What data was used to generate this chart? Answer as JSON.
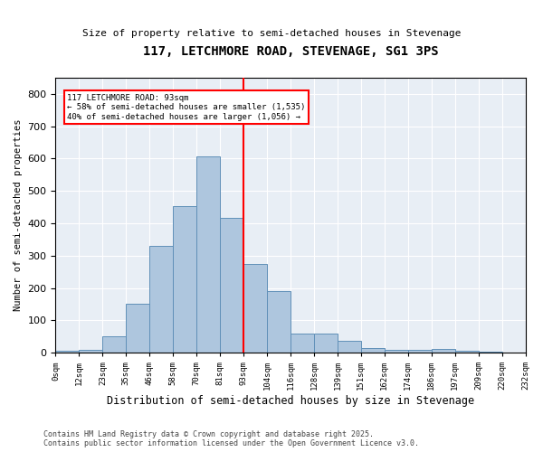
{
  "title": "117, LETCHMORE ROAD, STEVENAGE, SG1 3PS",
  "subtitle": "Size of property relative to semi-detached houses in Stevenage",
  "xlabel": "Distribution of semi-detached houses by size in Stevenage",
  "ylabel": "Number of semi-detached properties",
  "categories": [
    "0sqm",
    "12sqm",
    "23sqm",
    "35sqm",
    "46sqm",
    "58sqm",
    "70sqm",
    "81sqm",
    "93sqm",
    "104sqm",
    "116sqm",
    "128sqm",
    "139sqm",
    "151sqm",
    "162sqm",
    "174sqm",
    "186sqm",
    "197sqm",
    "209sqm",
    "220sqm",
    "232sqm"
  ],
  "bar_heights": [
    5,
    8,
    50,
    150,
    330,
    452,
    608,
    418,
    275,
    190,
    58,
    58,
    38,
    15,
    10,
    10,
    12,
    5,
    3,
    0
  ],
  "bar_color": "#aec6de",
  "bar_edge_color": "#6090b8",
  "vline_x": 8,
  "vline_color": "red",
  "annotation_title": "117 LETCHMORE ROAD: 93sqm",
  "annotation_line1": "← 58% of semi-detached houses are smaller (1,535)",
  "annotation_line2": "40% of semi-detached houses are larger (1,056) →",
  "ylim": [
    0,
    850
  ],
  "yticks": [
    0,
    100,
    200,
    300,
    400,
    500,
    600,
    700,
    800
  ],
  "background_color": "#e8eef5",
  "footer1": "Contains HM Land Registry data © Crown copyright and database right 2025.",
  "footer2": "Contains public sector information licensed under the Open Government Licence v3.0."
}
